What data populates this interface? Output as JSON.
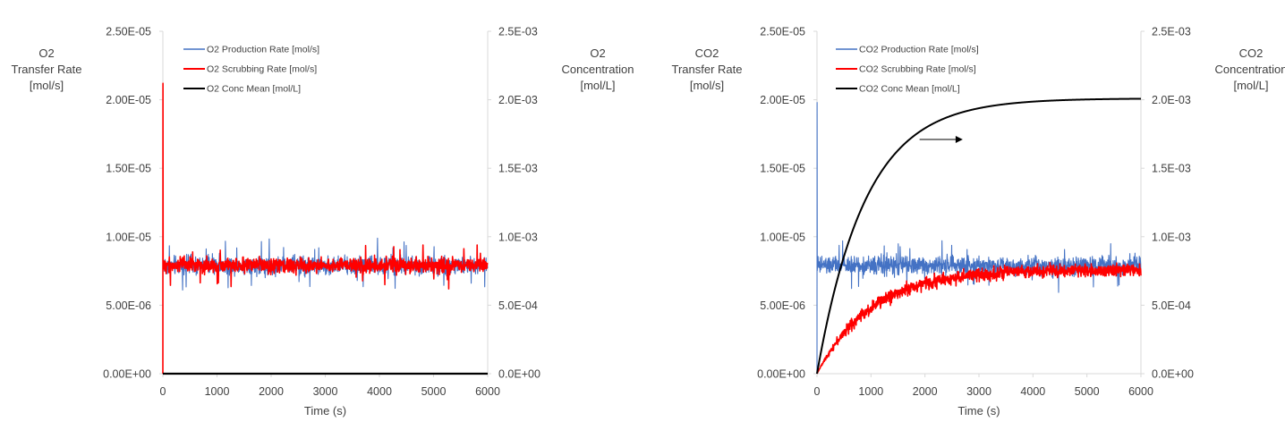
{
  "chart_data": [
    {
      "type": "line",
      "xlabel": "Time (s)",
      "ylabel_left": [
        "O2",
        "Transfer Rate",
        "[mol/s]"
      ],
      "ylabel_right": [
        "O2",
        "Concentration",
        "[mol/L]"
      ],
      "xlim": [
        0,
        6000
      ],
      "ylim_left": [
        0,
        2.5e-05
      ],
      "ylim_right": [
        0,
        0.0025
      ],
      "x_ticks": [
        "0",
        "1000",
        "2000",
        "3000",
        "4000",
        "5000",
        "6000"
      ],
      "y_ticks_left": [
        "0.00E+00",
        "5.00E-06",
        "1.00E-05",
        "1.50E-05",
        "2.00E-05",
        "2.50E-05"
      ],
      "y_ticks_right": [
        "0.0E+00",
        "5.0E-04",
        "1.0E-03",
        "1.5E-03",
        "2.0E-03",
        "2.5E-03"
      ],
      "legend_position": "top-left",
      "grid": false,
      "series": [
        {
          "name": "O2 Production Rate [mol/s]",
          "color": "#4472C4",
          "axis": "left",
          "kind": "noise",
          "mean": 7.9e-06,
          "amplitude": 1e-06,
          "start": 7.9e-06,
          "spike": null
        },
        {
          "name": "O2 Scrubbing Rate [mol/s]",
          "color": "#FF0000",
          "axis": "left",
          "kind": "noise",
          "mean": 7.9e-06,
          "amplitude": 8e-07,
          "start": 0,
          "spike": 2.12e-05
        },
        {
          "name": "O2 Conc Mean [mol/L]",
          "color": "#000000",
          "axis": "right",
          "kind": "constant",
          "value": 0
        }
      ]
    },
    {
      "type": "line",
      "xlabel": "Time (s)",
      "ylabel_left": [
        "CO2",
        "Transfer Rate",
        "[mol/s]"
      ],
      "ylabel_right": [
        "CO2",
        "Concentration",
        "[mol/L]"
      ],
      "xlim": [
        0,
        6000
      ],
      "ylim_left": [
        0,
        2.5e-05
      ],
      "ylim_right": [
        0,
        0.0025
      ],
      "x_ticks": [
        "0",
        "1000",
        "2000",
        "3000",
        "4000",
        "5000",
        "6000"
      ],
      "y_ticks_left": [
        "0.00E+00",
        "5.00E-06",
        "1.00E-05",
        "1.50E-05",
        "2.00E-05",
        "2.50E-05"
      ],
      "y_ticks_right": [
        "0.0E+00",
        "5.0E-04",
        "1.0E-03",
        "1.5E-03",
        "2.0E-03",
        "2.5E-03"
      ],
      "legend_position": "top-left",
      "grid": false,
      "annotation_arrow": {
        "from": [
          1900,
          0.00171
        ],
        "to": [
          2700,
          0.00171
        ],
        "meaning": "CO2 Conc Mean uses right axis"
      },
      "series": [
        {
          "name": "CO2 Production Rate [mol/s]",
          "color": "#4472C4",
          "axis": "left",
          "kind": "noise",
          "mean": 7.9e-06,
          "amplitude": 1e-06,
          "start": 0,
          "spike": 1.98e-05
        },
        {
          "name": "CO2 Scrubbing Rate [mol/s]",
          "color": "#FF0000",
          "axis": "left",
          "kind": "rise",
          "final": 7.6e-06,
          "tau": 1000,
          "amplitude": 7e-07
        },
        {
          "name": "CO2 Conc Mean [mol/L]",
          "color": "#000000",
          "axis": "right",
          "kind": "rise",
          "final": 0.00201,
          "tau": 900,
          "amplitude": 0
        }
      ]
    }
  ]
}
